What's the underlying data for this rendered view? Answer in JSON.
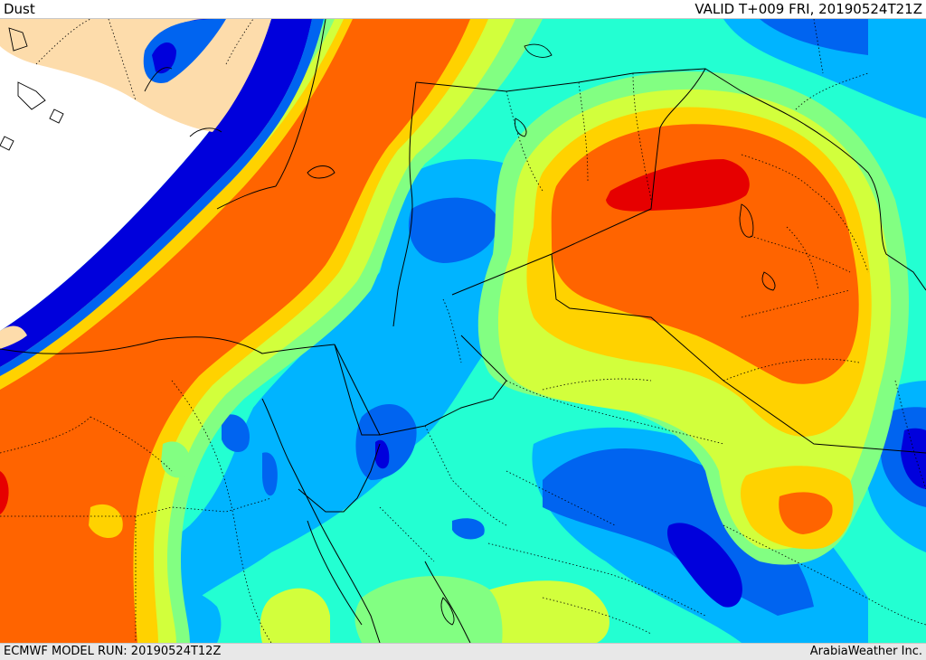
{
  "header": {
    "title": "Dust",
    "valid": "VALID T+009 FRI, 20190524T21Z"
  },
  "footer": {
    "model_run": "ECMWF MODEL RUN: 20190524T12Z",
    "credit": "ArabiaWeather Inc."
  },
  "palette": {
    "sea": "#ffffff",
    "land_no_data": "#fddcab",
    "dark_blue": "#0000dc",
    "blue": "#0064f0",
    "light_blue": "#00b4ff",
    "cyan": "#23ffd2",
    "light_green": "#82ff82",
    "yellow_green": "#d2ff3c",
    "yellow": "#ffd200",
    "orange": "#ff6400",
    "red": "#e60000"
  }
}
